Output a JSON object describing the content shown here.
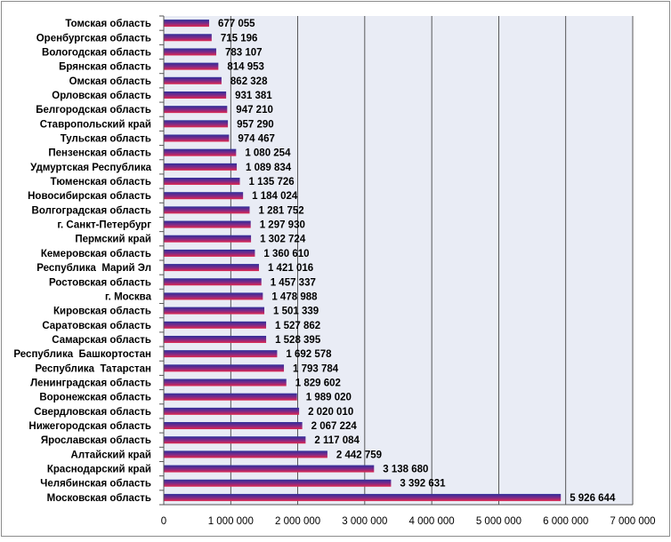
{
  "chart_data": {
    "type": "bar",
    "orientation": "horizontal",
    "categories": [
      "Томская область",
      "Оренбургская область",
      "Вологодская область",
      "Брянская область",
      "Омская область",
      "Орловская область",
      "Белгородская область",
      "Ставропольский край",
      "Тульская область",
      "Пензенская область",
      "Удмуртская Республика",
      "Тюменская область",
      "Новосибирская область",
      "Волгоградская область",
      "г. Санкт-Петербург",
      "Пермский край",
      "Кемеровская область",
      "Республика  Марий Эл",
      "Ростовская область",
      "г. Москва",
      "Кировская область",
      "Саратовская область",
      "Самарская область",
      "Республика  Башкортостан",
      "Республика  Татарстан",
      "Ленинградская область",
      "Воронежская область",
      "Свердловская область",
      "Нижегородская область",
      "Ярославская область",
      "Алтайский край",
      "Краснодарский край",
      "Челябинская область",
      "Московская область"
    ],
    "values": [
      677055,
      715196,
      783107,
      814953,
      862328,
      931381,
      947210,
      957290,
      974467,
      1080254,
      1089834,
      1135726,
      1184024,
      1281752,
      1297930,
      1302724,
      1360610,
      1421016,
      1457337,
      1478988,
      1501339,
      1527862,
      1528395,
      1692578,
      1793784,
      1829602,
      1989020,
      2020010,
      2067224,
      2117084,
      2442759,
      3138680,
      3392631,
      5926644
    ],
    "value_labels": [
      "677 055",
      "715 196",
      "783 107",
      "814 953",
      "862 328",
      "931 381",
      "947 210",
      "957 290",
      "974 467",
      "1 080 254",
      "1 089 834",
      "1 135 726",
      "1 184 024",
      "1 281 752",
      "1 297 930",
      "1 302 724",
      "1 360 610",
      "1 421 016",
      "1 457 337",
      "1 478 988",
      "1 501 339",
      "1 527 862",
      "1 528 395",
      "1 692 578",
      "1 793 784",
      "1 829 602",
      "1 989 020",
      "2 020 010",
      "2 067 224",
      "2 117 084",
      "2 442 759",
      "3 138 680",
      "3 392 631",
      "5 926 644"
    ],
    "xlim": [
      0,
      7000000
    ],
    "x_ticks": [
      0,
      1000000,
      2000000,
      3000000,
      4000000,
      5000000,
      6000000,
      7000000
    ],
    "x_tick_labels": [
      "0",
      "1 000 000",
      "2 000 000",
      "3 000 000",
      "4 000 000",
      "5 000 000",
      "6 000 000",
      "7 000 000"
    ],
    "title": "",
    "xlabel": "",
    "ylabel": "",
    "grid": "vertical",
    "legend": "none",
    "colors": {
      "plot_background": "#e9ecf5",
      "bar_top": "#2d2f9a",
      "bar_mid": "#7a2a8a",
      "bar_bottom": "#e0284e",
      "gridline": "#333333",
      "text": "#000000"
    }
  }
}
